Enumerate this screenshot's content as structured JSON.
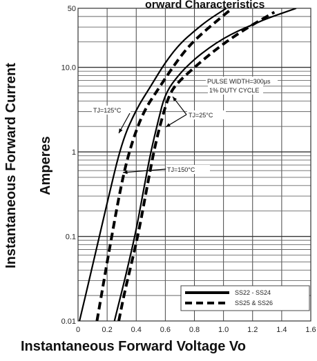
{
  "chart_data": {
    "type": "line",
    "title": "",
    "top_text_fragment": "orward Characteristics",
    "xlabel": "Instantaneous Forward Voltage Vo",
    "ylabel_line1": "Instantaneous Forward Current",
    "ylabel_line2": "Amperes",
    "xlim": [
      0,
      1.6
    ],
    "ylim": [
      0.01,
      50
    ],
    "yscale": "log",
    "grid": true,
    "x_ticks": [
      "0",
      "0.2",
      "0.4",
      "0.6",
      "0.8",
      "1.0",
      "1.2",
      "1.4",
      "1.6"
    ],
    "y_ticks": [
      {
        "value": 0.01,
        "label": "0.01"
      },
      {
        "value": 0.1,
        "label": "0.1"
      },
      {
        "value": 1,
        "label": "1"
      },
      {
        "value": 10,
        "label": "10.0"
      },
      {
        "value": 50,
        "label": "50"
      }
    ],
    "annotations": {
      "pulse_width": "PULSE WIDTH=300μs",
      "duty_cycle": "1% DUTY CYCLE",
      "tj125": "TJ=125°C",
      "tj25": "TJ=25°C",
      "tj150": "TJ=150°C"
    },
    "legend": {
      "position": "bottom-right",
      "entries": [
        {
          "label": "SS22 - SS24",
          "style": "solid"
        },
        {
          "label": "SS25 & SS26",
          "style": "dashed"
        }
      ]
    },
    "series": [
      {
        "group": "SS22 - SS24",
        "condition": "TJ=125°C",
        "style": "solid",
        "x": [
          0.01,
          0.1,
          0.2,
          0.3,
          0.4,
          0.5,
          0.6,
          0.7,
          0.8,
          0.9,
          1.02
        ],
        "y": [
          0.01,
          0.045,
          0.25,
          1.3,
          3.2,
          6.0,
          11.5,
          19.0,
          27.0,
          37.0,
          50.0
        ]
      },
      {
        "group": "SS25 & SS26",
        "condition": "TJ=125°C",
        "style": "dashed",
        "x": [
          0.13,
          0.2,
          0.3,
          0.37,
          0.45,
          0.55,
          0.65,
          0.75,
          0.85,
          0.95,
          1.06
        ],
        "y": [
          0.01,
          0.05,
          0.45,
          1.3,
          3.0,
          5.5,
          10.0,
          17.0,
          25.0,
          35.0,
          50.0
        ]
      },
      {
        "group": "SS22 - SS24",
        "condition": "TJ=25°C",
        "style": "solid",
        "x": [
          0.25,
          0.3,
          0.35,
          0.4,
          0.45,
          0.5,
          0.55,
          0.6,
          0.7,
          0.8,
          0.9,
          1.0,
          1.1,
          1.2,
          1.3,
          1.5
        ],
        "y": [
          0.01,
          0.022,
          0.05,
          0.12,
          0.35,
          1.0,
          2.3,
          5.0,
          8.5,
          12.5,
          17.0,
          22.0,
          27.0,
          32.0,
          38.0,
          50.0
        ]
      },
      {
        "group": "SS25 & SS26",
        "condition": "TJ=25°C",
        "style": "dashed",
        "x": [
          0.28,
          0.32,
          0.37,
          0.42,
          0.47,
          0.52,
          0.57,
          0.63,
          0.7,
          0.8,
          0.9,
          1.0,
          1.1,
          1.2,
          1.35
        ],
        "y": [
          0.01,
          0.022,
          0.05,
          0.12,
          0.35,
          1.0,
          2.3,
          5.0,
          7.0,
          10.0,
          14.0,
          19.0,
          25.0,
          32.0,
          45.0
        ]
      }
    ]
  }
}
